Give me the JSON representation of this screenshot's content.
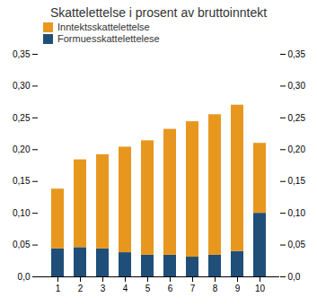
{
  "chart_data": {
    "type": "bar",
    "stacked": true,
    "title": "Skattelettelse i prosent av bruttoinntekt",
    "categories": [
      1,
      2,
      3,
      4,
      5,
      6,
      7,
      8,
      9,
      10
    ],
    "series": [
      {
        "name": "Formuesskattelettelese",
        "color": "#1F4E79",
        "values": [
          0.044,
          0.046,
          0.044,
          0.038,
          0.034,
          0.034,
          0.031,
          0.034,
          0.04,
          0.1
        ]
      },
      {
        "name": "Inntektsskattelettelse",
        "color": "#E8971E",
        "values": [
          0.094,
          0.138,
          0.148,
          0.166,
          0.18,
          0.198,
          0.213,
          0.221,
          0.23,
          0.11
        ]
      }
    ],
    "ylim": [
      0,
      0.35
    ],
    "yticks": [
      {
        "value": 0.0,
        "label": "0,0"
      },
      {
        "value": 0.05,
        "label": "0,05"
      },
      {
        "value": 0.1,
        "label": "0,10"
      },
      {
        "value": 0.15,
        "label": "0,15"
      },
      {
        "value": 0.2,
        "label": "0,20"
      },
      {
        "value": 0.25,
        "label": "0,25"
      },
      {
        "value": 0.3,
        "label": "0,30"
      },
      {
        "value": 0.35,
        "label": "0,35"
      }
    ],
    "grid": false,
    "legend": "upper left"
  }
}
